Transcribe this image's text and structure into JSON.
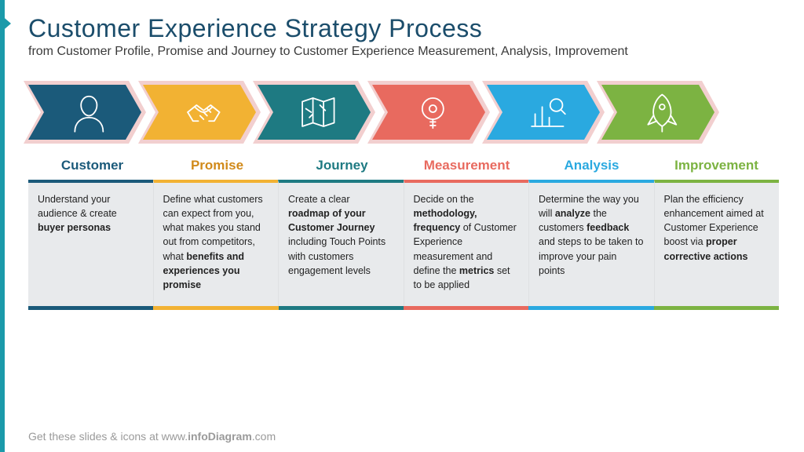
{
  "title": "Customer Experience Strategy Process",
  "subtitle": "from Customer Profile, Promise and Journey to Customer Experience Measurement, Analysis, Improvement",
  "footer_prefix": "Get these slides & icons at www.",
  "footer_brand": "infoDiagram",
  "footer_suffix": ".com",
  "background_color": "#ffffff",
  "accent_border_color": "#1b9aaa",
  "content_bg": "#e8eaec",
  "title_color": "#1b4d6b",
  "chevron_border": "#f2cfcf",
  "stages": [
    {
      "label": "Customer",
      "color": "#1b5a7a",
      "label_color": "#1b5a7a",
      "icon": "person",
      "body_html": "Understand your audience & create <b>buyer personas</b>"
    },
    {
      "label": "Promise",
      "color": "#f2b233",
      "label_color": "#d18a1a",
      "icon": "handshake",
      "body_html": "Define what customers can expect from you, what makes you stand out from competitors, what <b>benefits and experiences you promise</b>"
    },
    {
      "label": "Journey",
      "color": "#1e7a82",
      "label_color": "#1e7a82",
      "icon": "map",
      "body_html": "Create a clear <b>roadmap of your Customer Journey</b> including Touch Points with customers engagement levels"
    },
    {
      "label": "Measurement",
      "color": "#e86a5f",
      "label_color": "#e86a5f",
      "icon": "tape",
      "body_html": "Decide on the <b>methodology, frequency</b> of Customer Experience measurement and define the <b>metrics</b> set to be applied"
    },
    {
      "label": "Analysis",
      "color": "#2aa9e0",
      "label_color": "#2aa9e0",
      "icon": "chart",
      "body_html": "Determine the way you will <b>analyze</b> the customers <b>feedback</b> and steps to be taken to improve your pain points"
    },
    {
      "label": "Improvement",
      "color": "#7cb342",
      "label_color": "#7cb342",
      "icon": "rocket",
      "body_html": "Plan the efficiency enhancement aimed at Customer Experience boost via <b>proper corrective actions</b>"
    }
  ]
}
